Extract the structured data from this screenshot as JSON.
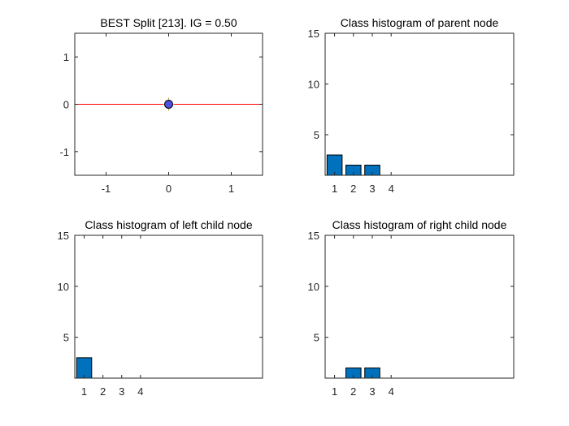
{
  "chart_data": [
    {
      "type": "scatter",
      "title": "BEST Split [213]. IG = 0.50",
      "xlabel": "",
      "ylabel": "",
      "xlim": [
        -1.5,
        1.5
      ],
      "ylim": [
        -1.5,
        1.5
      ],
      "xticks": [
        -1,
        0,
        1
      ],
      "yticks": [
        -1,
        0,
        1
      ],
      "points": [
        {
          "x": 0,
          "y": 0
        }
      ],
      "point_color": "#4f4fe0",
      "split_line": {
        "y": 0,
        "color": "#ff0000"
      }
    },
    {
      "type": "bar",
      "title": "Class histogram of parent node",
      "categories": [
        "1",
        "2",
        "3",
        "4"
      ],
      "values": [
        3,
        2,
        2,
        0
      ],
      "xlim": [
        0.5,
        10.5
      ],
      "ylim": [
        1,
        15
      ],
      "yticks": [
        5,
        10,
        15
      ],
      "bar_color": "#0072bd"
    },
    {
      "type": "bar",
      "title": "Class histogram of left child node",
      "categories": [
        "1",
        "2",
        "3",
        "4"
      ],
      "values": [
        3,
        0,
        0,
        0
      ],
      "xlim": [
        0.5,
        10.5
      ],
      "ylim": [
        1,
        15
      ],
      "yticks": [
        5,
        10,
        15
      ],
      "bar_color": "#0072bd"
    },
    {
      "type": "bar",
      "title": "Class histogram of right child node",
      "categories": [
        "1",
        "2",
        "3",
        "4"
      ],
      "values": [
        0,
        2,
        2,
        0
      ],
      "xlim": [
        0.5,
        10.5
      ],
      "ylim": [
        1,
        15
      ],
      "yticks": [
        5,
        10,
        15
      ],
      "bar_color": "#0072bd"
    }
  ]
}
